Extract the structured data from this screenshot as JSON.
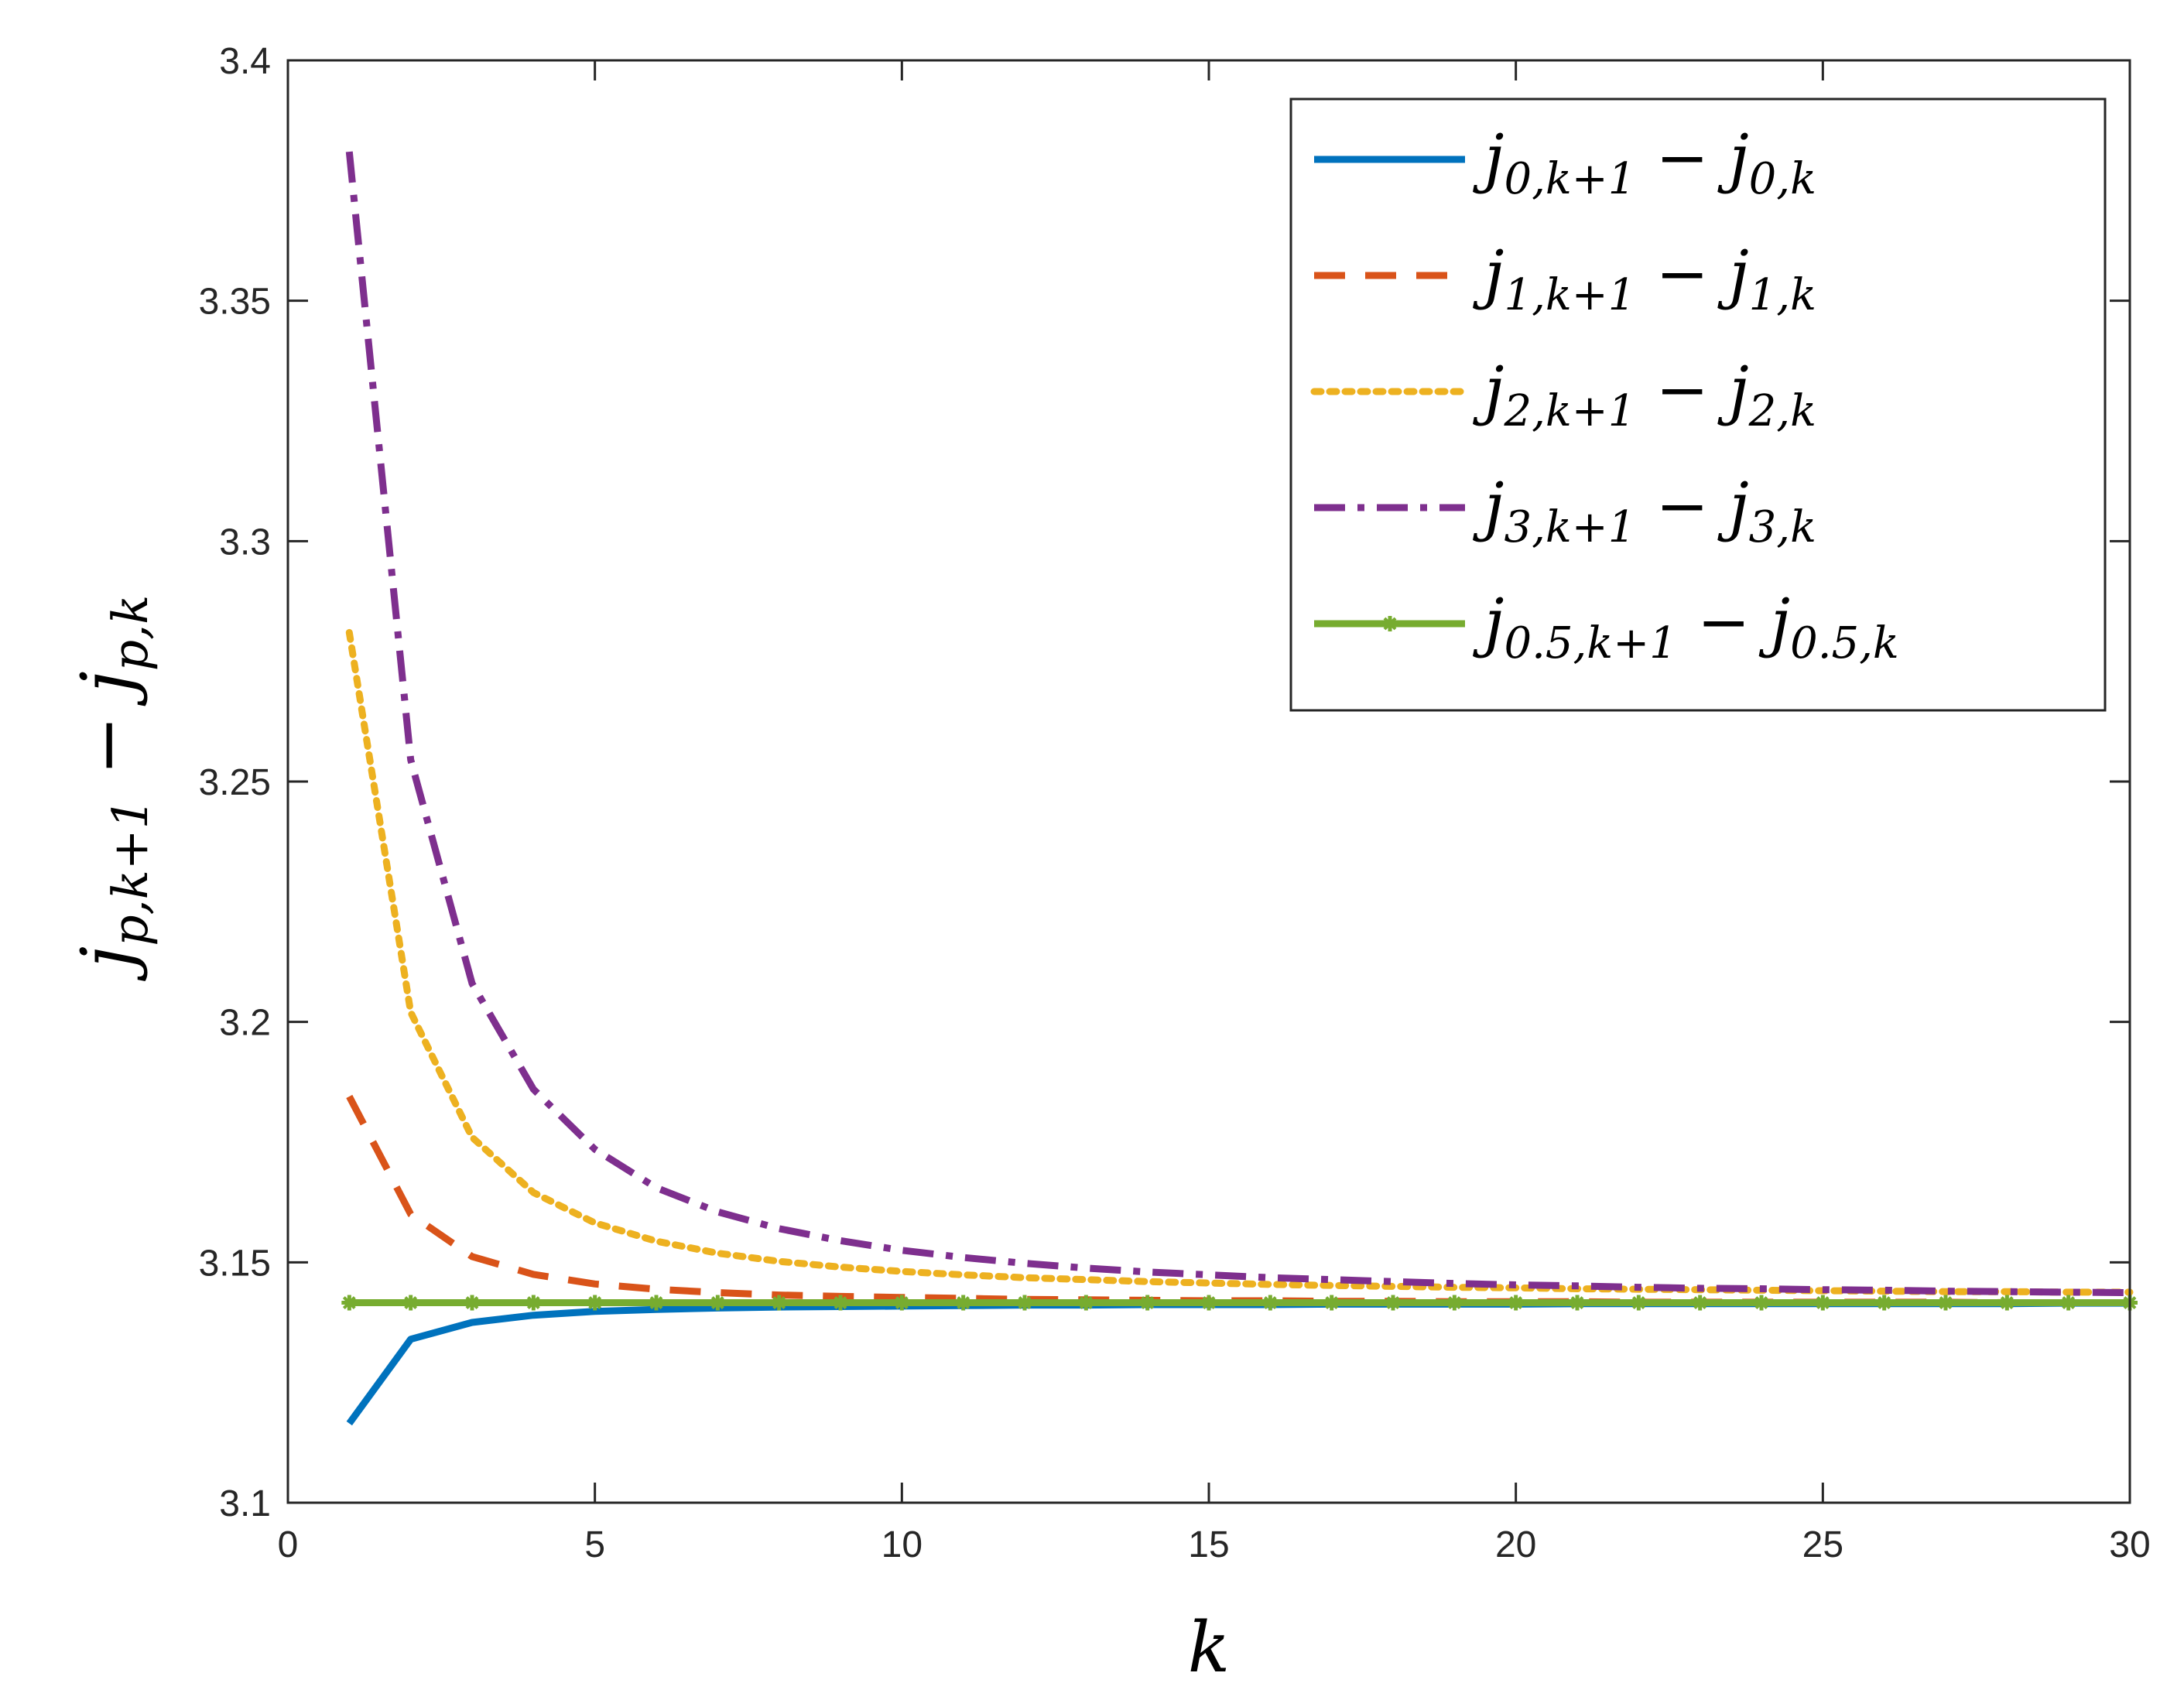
{
  "chart_data": {
    "type": "line",
    "xlabel": "k",
    "ylabel": {
      "base": "j",
      "sub1": "p,k+1",
      "minus": "−",
      "base2": "j",
      "sub2": "p,k"
    },
    "xlim": [
      0,
      30
    ],
    "ylim": [
      3.1,
      3.4
    ],
    "x_ticks": [
      "0",
      "5",
      "10",
      "15",
      "20",
      "25",
      "30"
    ],
    "y_ticks": [
      "3.1",
      "3.15",
      "3.2",
      "3.25",
      "3.3",
      "3.35",
      "3.4"
    ],
    "grid": false,
    "legend_position": "top-right",
    "x": [
      1,
      2,
      3,
      4,
      5,
      6,
      7,
      8,
      9,
      10,
      11,
      12,
      13,
      14,
      15,
      16,
      17,
      18,
      19,
      20,
      21,
      22,
      23,
      24,
      25,
      26,
      27,
      28,
      29,
      30
    ],
    "series": [
      {
        "name": "j_{0,k+1} − j_{0,k}",
        "legend": {
          "base": "j",
          "sub1": "0,k+1",
          "minus": "−",
          "base2": "j",
          "sub2": "0,k"
        },
        "color": "#0072BD",
        "style": "solid",
        "values": [
          3.1165,
          3.134,
          3.1375,
          3.139,
          3.1398,
          3.1402,
          3.1405,
          3.1407,
          3.1408,
          3.1409,
          3.141,
          3.1411,
          3.1411,
          3.1412,
          3.1412,
          3.1412,
          3.1413,
          3.1413,
          3.1413,
          3.1413,
          3.1414,
          3.1414,
          3.1414,
          3.1414,
          3.1414,
          3.1414,
          3.1414,
          3.1414,
          3.1415,
          3.1415
        ]
      },
      {
        "name": "j_{1,k+1} − j_{1,k}",
        "legend": {
          "base": "j",
          "sub1": "1,k+1",
          "minus": "−",
          "base2": "j",
          "sub2": "1,k"
        },
        "color": "#D95319",
        "style": "dashed",
        "values": [
          3.1845,
          3.16,
          3.1512,
          3.1475,
          3.1455,
          3.1444,
          3.1437,
          3.1432,
          3.1429,
          3.1427,
          3.1425,
          3.1423,
          3.1422,
          3.1421,
          3.142,
          3.142,
          3.1419,
          3.1419,
          3.1418,
          3.1418,
          3.1418,
          3.1417,
          3.1417,
          3.1417,
          3.1417,
          3.1417,
          3.1417,
          3.1416,
          3.1416,
          3.1416
        ]
      },
      {
        "name": "j_{2,k+1} − j_{2,k}",
        "legend": {
          "base": "j",
          "sub1": "2,k+1",
          "minus": "−",
          "base2": "j",
          "sub2": "2,k"
        },
        "color": "#EDB120",
        "style": "dotted",
        "values": [
          3.281,
          3.202,
          3.176,
          3.1645,
          3.1582,
          3.1544,
          3.1519,
          3.1502,
          3.149,
          3.1481,
          3.1474,
          3.1468,
          3.1464,
          3.146,
          3.1457,
          3.1454,
          3.1452,
          3.145,
          3.1448,
          3.1447,
          3.1445,
          3.1444,
          3.1443,
          3.1442,
          3.1441,
          3.144,
          3.1439,
          3.1439,
          3.1438,
          3.1438
        ]
      },
      {
        "name": "j_{3,k+1} − j_{3,k}",
        "legend": {
          "base": "j",
          "sub1": "3,k+1",
          "minus": "−",
          "base2": "j",
          "sub2": "3,k"
        },
        "color": "#7E2F8E",
        "style": "dashdot",
        "values": [
          3.381,
          3.2545,
          3.208,
          3.186,
          3.1735,
          3.1655,
          3.1605,
          3.157,
          3.1545,
          3.1525,
          3.151,
          3.1498,
          3.1488,
          3.148,
          3.1474,
          3.1468,
          3.1464,
          3.146,
          3.1456,
          3.1453,
          3.1451,
          3.1448,
          3.1446,
          3.1445,
          3.1443,
          3.1442,
          3.144,
          3.1439,
          3.1438,
          3.1437
        ]
      },
      {
        "name": "j_{0.5,k+1} − j_{0.5,k}",
        "legend": {
          "base": "j",
          "sub1": "0.5,k+1",
          "minus": "−",
          "base2": "j",
          "sub2": "0.5,k"
        },
        "color": "#77AC30",
        "style": "solid-marker",
        "values": [
          3.1416,
          3.1416,
          3.1416,
          3.1416,
          3.1416,
          3.1416,
          3.1416,
          3.1416,
          3.1416,
          3.1416,
          3.1416,
          3.1416,
          3.1416,
          3.1416,
          3.1416,
          3.1416,
          3.1416,
          3.1416,
          3.1416,
          3.1416,
          3.1416,
          3.1416,
          3.1416,
          3.1416,
          3.1416,
          3.1416,
          3.1416,
          3.1416,
          3.1416,
          3.1416
        ]
      }
    ]
  }
}
